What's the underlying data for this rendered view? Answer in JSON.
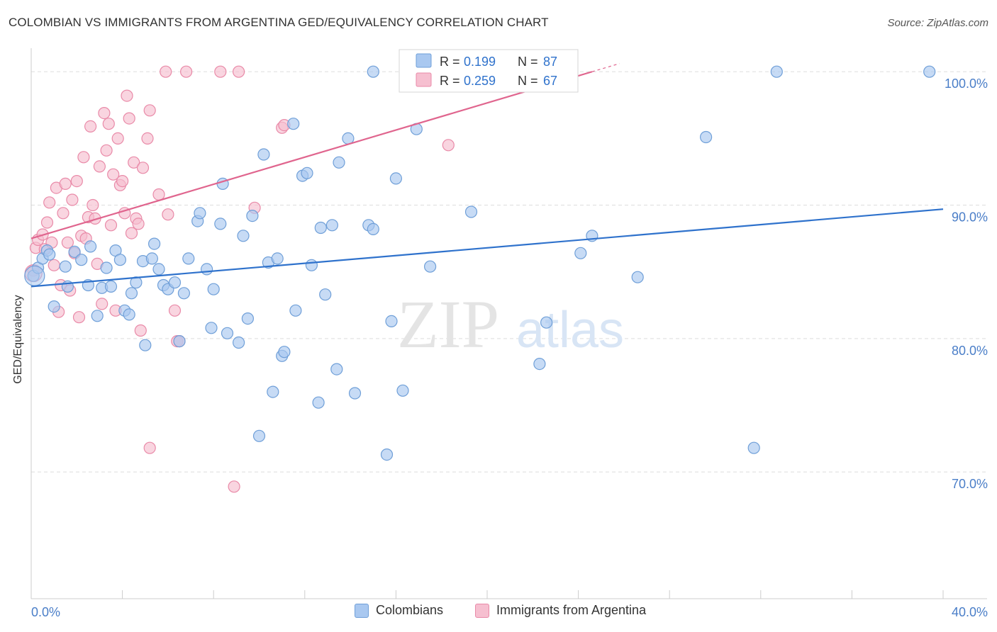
{
  "title": "COLOMBIAN VS IMMIGRANTS FROM ARGENTINA GED/EQUIVALENCY CORRELATION CHART",
  "source": "Source: ZipAtlas.com",
  "watermark": {
    "zip": "ZIP",
    "atlas": "atlas"
  },
  "legend_stats": [
    {
      "r_label": "R =",
      "r_value": "0.199",
      "n_label": "N =",
      "n_value": "87"
    },
    {
      "r_label": "R =",
      "r_value": "0.259",
      "n_label": "N =",
      "n_value": "67"
    }
  ],
  "legend_bottom": [
    "Colombians",
    "Immigrants from Argentina"
  ],
  "colors": {
    "blue_fill": "#a9c8f0",
    "blue_stroke": "#6f9fd8",
    "blue_line": "#2f72cc",
    "pink_fill": "#f6bfd0",
    "pink_stroke": "#e98aa8",
    "pink_line": "#e0658e",
    "axis_text": "#4a7ec8",
    "grid": "#dddddd"
  },
  "chart_data": {
    "type": "scatter",
    "title": "COLOMBIAN VS IMMIGRANTS FROM ARGENTINA GED/EQUIVALENCY CORRELATION CHART",
    "xlabel": "",
    "ylabel": "GED/Equivalency",
    "xlim": [
      0,
      40
    ],
    "ylim": [
      60.5,
      101.5
    ],
    "x_tick_labels": [
      "0.0%",
      "40.0%"
    ],
    "y_ticks": [
      70,
      80,
      90,
      100
    ],
    "y_tick_labels": [
      "70.0%",
      "80.0%",
      "90.0%",
      "100.0%"
    ],
    "grid": "horizontal dashed",
    "legend": "top-center",
    "series": [
      {
        "name": "Colombians",
        "r": 0.199,
        "n": 87,
        "trend": [
          [
            0,
            83.9
          ],
          [
            40,
            89.7
          ]
        ],
        "points": [
          [
            0.1,
            84.7
          ],
          [
            0.3,
            85.3
          ],
          [
            0.5,
            86.0
          ],
          [
            0.7,
            86.6
          ],
          [
            0.8,
            86.3
          ],
          [
            1.0,
            82.4
          ],
          [
            1.5,
            85.4
          ],
          [
            1.6,
            83.9
          ],
          [
            1.9,
            86.5
          ],
          [
            2.2,
            85.9
          ],
          [
            2.5,
            84.0
          ],
          [
            2.6,
            86.9
          ],
          [
            2.9,
            81.7
          ],
          [
            3.1,
            83.8
          ],
          [
            3.3,
            85.3
          ],
          [
            3.5,
            83.9
          ],
          [
            3.7,
            86.6
          ],
          [
            3.9,
            85.9
          ],
          [
            4.1,
            82.1
          ],
          [
            4.3,
            81.8
          ],
          [
            4.4,
            83.4
          ],
          [
            4.6,
            84.2
          ],
          [
            4.9,
            85.8
          ],
          [
            5.0,
            79.5
          ],
          [
            5.3,
            86.0
          ],
          [
            5.4,
            87.1
          ],
          [
            5.6,
            85.2
          ],
          [
            5.8,
            84.0
          ],
          [
            6.0,
            83.7
          ],
          [
            6.3,
            84.2
          ],
          [
            6.5,
            79.8
          ],
          [
            6.7,
            83.4
          ],
          [
            6.9,
            86.0
          ],
          [
            7.3,
            88.8
          ],
          [
            7.4,
            89.4
          ],
          [
            7.7,
            85.2
          ],
          [
            7.9,
            80.8
          ],
          [
            8.0,
            83.7
          ],
          [
            8.3,
            88.6
          ],
          [
            8.4,
            91.6
          ],
          [
            8.6,
            80.4
          ],
          [
            9.1,
            79.7
          ],
          [
            9.3,
            87.7
          ],
          [
            9.5,
            81.5
          ],
          [
            9.7,
            89.2
          ],
          [
            10.0,
            72.7
          ],
          [
            10.2,
            93.8
          ],
          [
            10.4,
            85.7
          ],
          [
            10.6,
            76.0
          ],
          [
            10.8,
            86.0
          ],
          [
            11.0,
            78.7
          ],
          [
            11.1,
            79.0
          ],
          [
            11.6,
            82.1
          ],
          [
            11.5,
            96.1
          ],
          [
            11.9,
            92.2
          ],
          [
            12.1,
            92.4
          ],
          [
            12.3,
            85.5
          ],
          [
            12.6,
            75.2
          ],
          [
            12.7,
            88.3
          ],
          [
            12.9,
            83.3
          ],
          [
            13.2,
            88.5
          ],
          [
            13.4,
            77.7
          ],
          [
            13.5,
            93.2
          ],
          [
            13.9,
            95.0
          ],
          [
            14.2,
            75.9
          ],
          [
            14.8,
            88.5
          ],
          [
            15.0,
            88.2
          ],
          [
            15.0,
            100.0
          ],
          [
            15.6,
            71.3
          ],
          [
            15.8,
            81.3
          ],
          [
            16.0,
            92.0
          ],
          [
            16.3,
            76.1
          ],
          [
            16.9,
            95.7
          ],
          [
            17.5,
            85.4
          ],
          [
            19.3,
            89.5
          ],
          [
            22.3,
            78.1
          ],
          [
            22.6,
            81.2
          ],
          [
            24.1,
            86.4
          ],
          [
            24.6,
            87.7
          ],
          [
            26.6,
            84.6
          ],
          [
            29.6,
            95.1
          ],
          [
            31.7,
            71.8
          ],
          [
            32.7,
            100.0
          ],
          [
            39.4,
            100.0
          ]
        ]
      },
      {
        "name": "Immigrants from Argentina",
        "r": 0.259,
        "n": 67,
        "trend": [
          [
            0,
            87.5
          ],
          [
            24.6,
            100.0
          ]
        ],
        "points": [
          [
            0.1,
            85.1
          ],
          [
            0.2,
            86.8
          ],
          [
            0.3,
            87.4
          ],
          [
            0.5,
            87.8
          ],
          [
            0.6,
            86.7
          ],
          [
            0.7,
            88.7
          ],
          [
            0.8,
            90.2
          ],
          [
            0.9,
            87.2
          ],
          [
            1.0,
            85.5
          ],
          [
            1.1,
            91.3
          ],
          [
            1.2,
            82.0
          ],
          [
            1.3,
            84.0
          ],
          [
            1.4,
            89.4
          ],
          [
            1.5,
            91.6
          ],
          [
            1.6,
            87.2
          ],
          [
            1.7,
            83.6
          ],
          [
            1.8,
            90.4
          ],
          [
            1.9,
            86.4
          ],
          [
            2.0,
            91.8
          ],
          [
            2.1,
            81.6
          ],
          [
            2.2,
            87.7
          ],
          [
            2.3,
            93.6
          ],
          [
            2.4,
            87.5
          ],
          [
            2.5,
            89.1
          ],
          [
            2.6,
            95.9
          ],
          [
            2.7,
            90.0
          ],
          [
            2.8,
            89.0
          ],
          [
            2.9,
            85.6
          ],
          [
            3.0,
            92.9
          ],
          [
            3.1,
            82.6
          ],
          [
            3.2,
            96.9
          ],
          [
            3.3,
            94.1
          ],
          [
            3.4,
            96.1
          ],
          [
            3.5,
            88.5
          ],
          [
            3.6,
            92.3
          ],
          [
            3.7,
            82.1
          ],
          [
            3.8,
            95.0
          ],
          [
            3.9,
            91.5
          ],
          [
            4.0,
            91.8
          ],
          [
            4.1,
            89.4
          ],
          [
            4.2,
            98.2
          ],
          [
            4.3,
            96.5
          ],
          [
            4.4,
            87.9
          ],
          [
            4.5,
            93.2
          ],
          [
            4.6,
            89.0
          ],
          [
            4.7,
            88.6
          ],
          [
            4.8,
            80.6
          ],
          [
            4.9,
            92.8
          ],
          [
            5.1,
            95.0
          ],
          [
            5.2,
            97.1
          ],
          [
            5.2,
            71.8
          ],
          [
            5.6,
            90.8
          ],
          [
            5.9,
            100.0
          ],
          [
            6.0,
            89.3
          ],
          [
            6.3,
            82.1
          ],
          [
            6.4,
            79.8
          ],
          [
            6.5,
            79.8
          ],
          [
            6.8,
            100.0
          ],
          [
            8.3,
            100.0
          ],
          [
            8.9,
            68.9
          ],
          [
            9.1,
            100.0
          ],
          [
            9.8,
            89.8
          ],
          [
            11.0,
            95.8
          ],
          [
            11.1,
            96.0
          ],
          [
            18.3,
            94.5
          ]
        ]
      }
    ]
  }
}
